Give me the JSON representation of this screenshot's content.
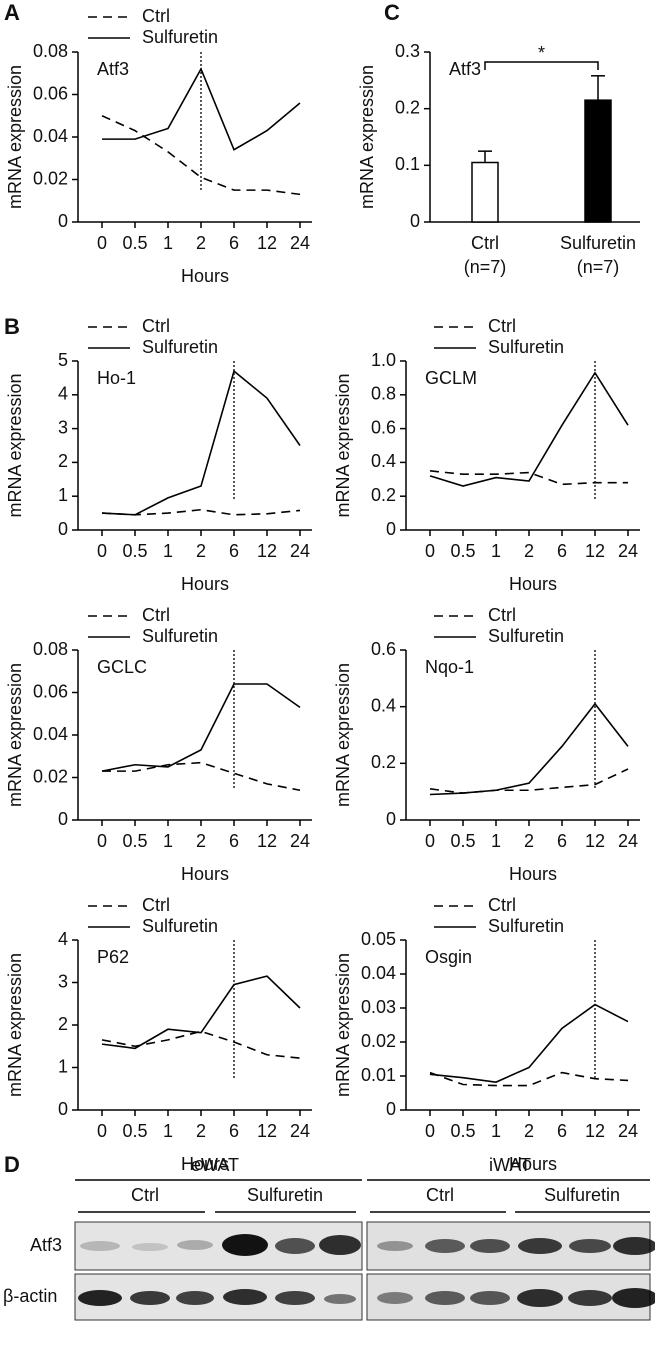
{
  "chart_data": [
    {
      "type": "line",
      "panel": "A",
      "label": "Atf3",
      "ylabel": "mRNA expression",
      "xlabel": "Hours",
      "categories": [
        "0",
        "0.5",
        "1",
        "2",
        "6",
        "12",
        "24"
      ],
      "series": [
        {
          "name": "Ctrl",
          "color": "#000000",
          "line_style": "dashed",
          "values": [
            0.05,
            0.043,
            0.033,
            0.021,
            0.015,
            0.015,
            0.013
          ]
        },
        {
          "name": "Sulfuretin",
          "color": "#000000",
          "line_style": "solid",
          "values": [
            0.039,
            0.039,
            0.044,
            0.072,
            0.034,
            0.043,
            0.056
          ]
        }
      ],
      "ylim": [
        0,
        0.08
      ],
      "yticks": [
        0,
        0.02,
        0.04,
        0.06,
        0.08
      ],
      "vline": "2"
    },
    {
      "type": "bar",
      "panel": "C",
      "label": "Atf3",
      "ylabel": "mRNA expression",
      "categories": [
        "Ctrl",
        "Sulfuretin"
      ],
      "category_notes": [
        "(n=7)",
        "(n=7)"
      ],
      "values": [
        0.105,
        0.215
      ],
      "errors": [
        0.02,
        0.043
      ],
      "colors": [
        "#ffffff",
        "#000000"
      ],
      "ylim": [
        0,
        0.3
      ],
      "yticks": [
        0,
        0.1,
        0.2,
        0.3
      ],
      "significance": "*"
    },
    {
      "type": "line",
      "panel": "B",
      "label": "Ho-1",
      "ylabel": "mRNA expression",
      "xlabel": "Hours",
      "categories": [
        "0",
        "0.5",
        "1",
        "2",
        "6",
        "12",
        "24"
      ],
      "series": [
        {
          "name": "Ctrl",
          "color": "#000000",
          "line_style": "dashed",
          "values": [
            0.5,
            0.45,
            0.5,
            0.6,
            0.45,
            0.48,
            0.58
          ]
        },
        {
          "name": "Sulfuretin",
          "color": "#000000",
          "line_style": "solid",
          "values": [
            0.5,
            0.45,
            0.95,
            1.3,
            4.7,
            3.9,
            2.5
          ]
        }
      ],
      "ylim": [
        0,
        5
      ],
      "yticks": [
        0,
        1,
        2,
        3,
        4,
        5
      ],
      "vline": "6"
    },
    {
      "type": "line",
      "label": "GCLM",
      "ylabel": "mRNA expression",
      "xlabel": "Hours",
      "categories": [
        "0",
        "0.5",
        "1",
        "2",
        "6",
        "12",
        "24"
      ],
      "series": [
        {
          "name": "Ctrl",
          "color": "#000000",
          "line_style": "dashed",
          "values": [
            0.35,
            0.33,
            0.33,
            0.34,
            0.27,
            0.28,
            0.28
          ]
        },
        {
          "name": "Sulfuretin",
          "color": "#000000",
          "line_style": "solid",
          "values": [
            0.32,
            0.26,
            0.31,
            0.29,
            0.62,
            0.93,
            0.62
          ]
        }
      ],
      "ylim": [
        0,
        1
      ],
      "yticks": [
        0,
        0.2,
        0.4,
        0.6,
        0.8,
        {
          "value": 1,
          "label": "1.0"
        }
      ],
      "vline": "12"
    },
    {
      "type": "line",
      "label": "GCLC",
      "ylabel": "mRNA expression",
      "xlabel": "Hours",
      "categories": [
        "0",
        "0.5",
        "1",
        "2",
        "6",
        "12",
        "24"
      ],
      "series": [
        {
          "name": "Ctrl",
          "color": "#000000",
          "line_style": "dashed",
          "values": [
            0.023,
            0.023,
            0.026,
            0.027,
            0.022,
            0.017,
            0.014
          ]
        },
        {
          "name": "Sulfuretin",
          "color": "#000000",
          "line_style": "solid",
          "values": [
            0.023,
            0.026,
            0.025,
            0.033,
            0.064,
            0.064,
            0.053
          ]
        }
      ],
      "ylim": [
        0,
        0.08
      ],
      "yticks": [
        0,
        0.02,
        0.04,
        0.06,
        0.08
      ],
      "vline": "6"
    },
    {
      "type": "line",
      "label": "Nqo-1",
      "ylabel": "mRNA expression",
      "xlabel": "Hours",
      "categories": [
        "0",
        "0.5",
        "1",
        "2",
        "6",
        "12",
        "24"
      ],
      "series": [
        {
          "name": "Ctrl",
          "color": "#000000",
          "line_style": "dashed",
          "values": [
            0.11,
            0.095,
            0.105,
            0.105,
            0.115,
            0.125,
            0.18
          ]
        },
        {
          "name": "Sulfuretin",
          "color": "#000000",
          "line_style": "solid",
          "values": [
            0.09,
            0.095,
            0.105,
            0.13,
            0.26,
            0.41,
            0.26
          ]
        }
      ],
      "ylim": [
        0,
        0.6
      ],
      "yticks": [
        0,
        0.2,
        0.4,
        0.6
      ],
      "vline": "12"
    },
    {
      "type": "line",
      "label": "P62",
      "ylabel": "mRNA expression",
      "xlabel": "Hours",
      "categories": [
        "0",
        "0.5",
        "1",
        "2",
        "6",
        "12",
        "24"
      ],
      "series": [
        {
          "name": "Ctrl",
          "color": "#000000",
          "line_style": "dashed",
          "values": [
            1.65,
            1.5,
            1.65,
            1.85,
            1.6,
            1.3,
            1.22
          ]
        },
        {
          "name": "Sulfuretin",
          "color": "#000000",
          "line_style": "solid",
          "values": [
            1.55,
            1.45,
            1.9,
            1.82,
            2.95,
            3.15,
            2.4
          ]
        }
      ],
      "ylim": [
        0,
        4
      ],
      "yticks": [
        0,
        1,
        2,
        3,
        4
      ],
      "vline": "6"
    },
    {
      "type": "line",
      "label": "Osgin",
      "ylabel": "mRNA expression",
      "xlabel": "Hours",
      "categories": [
        "0",
        "0.5",
        "1",
        "2",
        "6",
        "12",
        "24"
      ],
      "series": [
        {
          "name": "Ctrl",
          "color": "#000000",
          "line_style": "dashed",
          "values": [
            0.011,
            0.0075,
            0.0072,
            0.0072,
            0.011,
            0.0092,
            0.0087
          ]
        },
        {
          "name": "Sulfuretin",
          "color": "#000000",
          "line_style": "solid",
          "values": [
            0.0105,
            0.0095,
            0.0082,
            0.0125,
            0.024,
            0.031,
            0.026
          ]
        }
      ],
      "ylim": [
        0,
        0.05
      ],
      "yticks": [
        0,
        0.01,
        0.02,
        0.03,
        0.04,
        0.05
      ],
      "vline": "12"
    }
  ],
  "blot": {
    "panel": "D",
    "rows": [
      "Atf3",
      "β-actin"
    ],
    "groups": [
      {
        "name": "eWAT",
        "conditions": [
          "Ctrl",
          "Sulfuretin"
        ]
      },
      {
        "name": "iWAT",
        "conditions": [
          "Ctrl",
          "Sulfuretin"
        ]
      }
    ]
  }
}
